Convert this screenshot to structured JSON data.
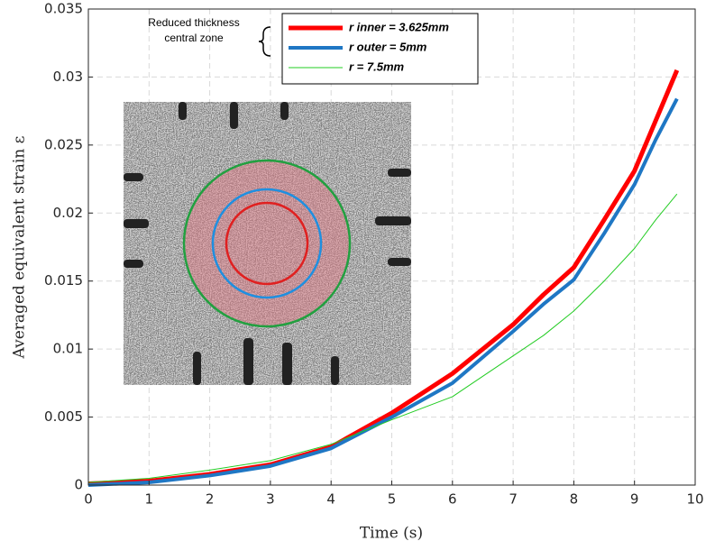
{
  "chart_data": {
    "type": "line",
    "xlabel": "Time (s)",
    "ylabel": "Averaged equivalent strain ε",
    "annotation": [
      "Reduced thickness",
      "central zone"
    ],
    "x": [
      0,
      1,
      2,
      3,
      4,
      5,
      6,
      7,
      7.5,
      8,
      8.5,
      9,
      9.35,
      9.7
    ],
    "series": [
      {
        "name": "r inner = 3.625mm",
        "color": "#ff0000",
        "width": 5,
        "values": [
          0.0001,
          0.0003,
          0.0008,
          0.0015,
          0.0028,
          0.0053,
          0.0082,
          0.0118,
          0.014,
          0.016,
          0.0195,
          0.0231,
          0.0268,
          0.0305
        ]
      },
      {
        "name": "r outer = 5mm",
        "color": "#1f77c4",
        "width": 4,
        "values": [
          0,
          0.0002,
          0.0007,
          0.0014,
          0.0027,
          0.005,
          0.0075,
          0.0113,
          0.0133,
          0.0151,
          0.0185,
          0.0221,
          0.0254,
          0.0284
        ]
      },
      {
        "name": "r  = 7.5mm",
        "color": "#22cc22",
        "width": 1,
        "values": [
          0.0002,
          0.0005,
          0.0011,
          0.0018,
          0.003,
          0.0048,
          0.0065,
          0.0095,
          0.011,
          0.0128,
          0.015,
          0.0174,
          0.0195,
          0.0214
        ]
      }
    ],
    "xlim": [
      0,
      10
    ],
    "ylim": [
      0,
      0.035
    ],
    "xticks": [
      0,
      1,
      2,
      3,
      4,
      5,
      6,
      7,
      8,
      9,
      10
    ],
    "yticks": [
      0,
      0.005,
      0.01,
      0.015,
      0.02,
      0.025,
      0.03,
      0.035
    ],
    "grid": true
  }
}
